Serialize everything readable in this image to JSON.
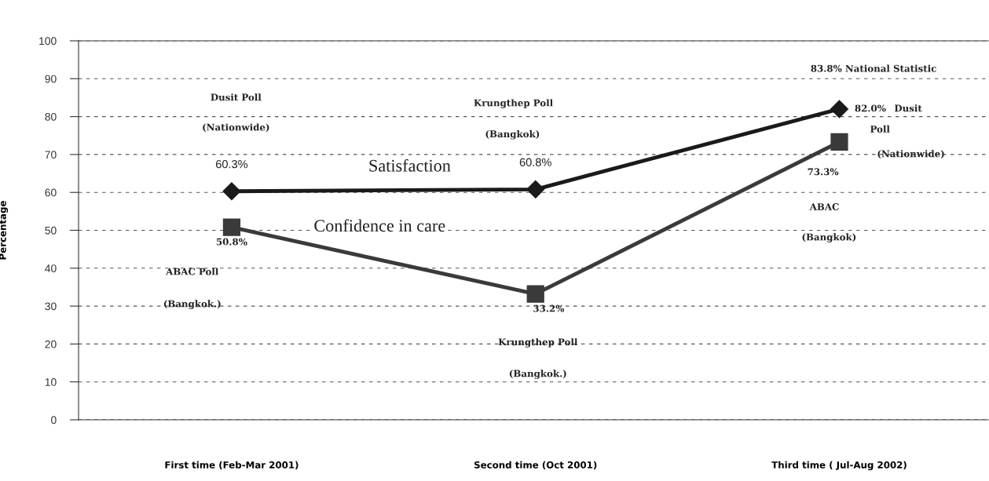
{
  "chart_data": {
    "type": "line",
    "ylabel": "Percentage",
    "categories": [
      "First time (Feb-Mar 2001)",
      "Second time (Oct 2001)",
      "Third time ( Jul-Aug 2002)"
    ],
    "ylim": [
      0,
      100
    ],
    "yticks": [
      0,
      10,
      20,
      30,
      40,
      50,
      60,
      70,
      80,
      90,
      100
    ],
    "grid": "y",
    "legend": false,
    "series": [
      {
        "name": "Satisfaction",
        "color": "#1a1a1a",
        "marker": "diamond",
        "values": [
          60.3,
          60.8,
          82.0
        ],
        "value_labels": [
          "60.3%",
          "60.8%",
          "82.0%"
        ]
      },
      {
        "name": "Confidence in care",
        "color": "#3a3a3a",
        "marker": "square",
        "values": [
          50.8,
          33.2,
          73.3
        ],
        "value_labels": [
          "50.8%",
          "33.2%",
          "73.3%"
        ]
      }
    ],
    "annotations": [
      "Dusit Poll",
      "(Nationwide)",
      "ABAC Poll",
      "(Bangkok.)",
      "Krungthep Poll",
      "(Bangkok)",
      "Krungthep Poll",
      "(Bangkok.)",
      "83.8% National Statistic",
      "Dusit",
      "Poll",
      "(Nationwide)",
      "ABAC",
      "(Bangkok)"
    ]
  }
}
